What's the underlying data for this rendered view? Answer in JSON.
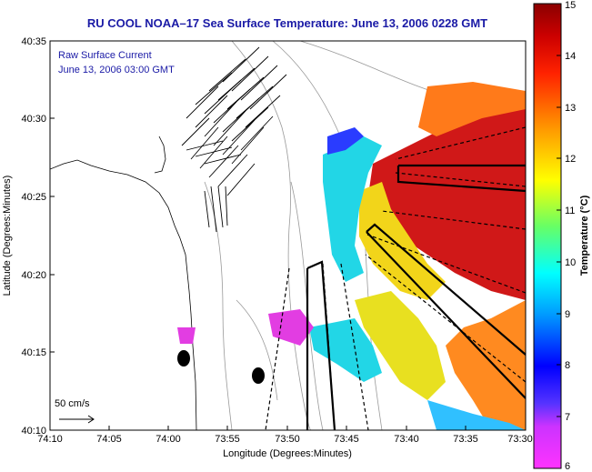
{
  "title": "RU COOL  NOAA–17  Sea Surface Temperature:  June 13, 2006 0228 GMT",
  "annotation": {
    "line1": "Raw Surface Current",
    "line2": "June 13, 2006 03:00 GMT"
  },
  "scale_label": "50 cm/s",
  "x_axis": {
    "label": "Longitude (Degrees:Minutes)",
    "ticks": [
      "74:10",
      "74:05",
      "74:00",
      "73:55",
      "73:50",
      "73:45",
      "73:40",
      "73:35",
      "73:30"
    ]
  },
  "y_axis": {
    "label": "Latitude (Degrees:Minutes)",
    "ticks": [
      "40:35",
      "40:30",
      "40:25",
      "40:20",
      "40:15",
      "40:10"
    ]
  },
  "colorbar": {
    "label": "Temperature (°C)",
    "ticks": [
      "15",
      "14",
      "13",
      "12",
      "11",
      "10",
      "9",
      "8",
      "7",
      "6"
    ],
    "min": 6,
    "max": 15,
    "colors": {
      "low": "#ff33ff",
      "mid_low": "#0000ff",
      "mid": "#00ffff",
      "mid_high": "#ffff00",
      "high": "#ff6600",
      "max": "#8b0000"
    }
  }
}
